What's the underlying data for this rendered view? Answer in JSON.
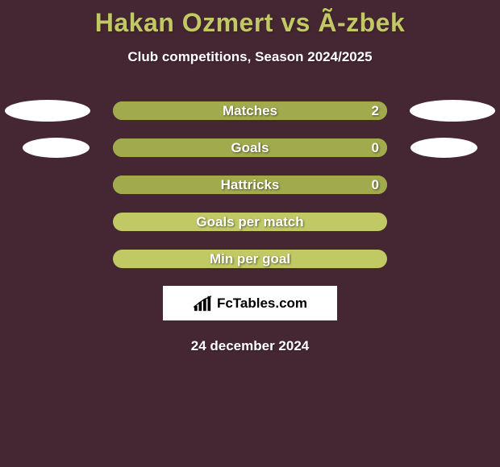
{
  "background_color": "#452633",
  "title": {
    "text": "Hakan Ozmert vs Ã-zbek",
    "color": "#c0c963"
  },
  "subtitle": {
    "text": "Club competitions, Season 2024/2025",
    "color": "#ffffff"
  },
  "bar_style": {
    "container_bg": "#c0c963",
    "left_fill_color": "#a2aa4e",
    "right_fill_color": "#a2aa4e",
    "label_color": "#ffffff",
    "border_radius": 12
  },
  "ellipse_color": "#ffffff",
  "rows": [
    {
      "label": "Matches",
      "left_value": "",
      "right_value": "2",
      "left_pct": 0,
      "right_pct": 100,
      "show_left_ellipse": true,
      "show_right_ellipse": true,
      "ellipse_variant": 1
    },
    {
      "label": "Goals",
      "left_value": "",
      "right_value": "0",
      "left_pct": 0,
      "right_pct": 100,
      "show_left_ellipse": true,
      "show_right_ellipse": true,
      "ellipse_variant": 2
    },
    {
      "label": "Hattricks",
      "left_value": "",
      "right_value": "0",
      "left_pct": 0,
      "right_pct": 100,
      "show_left_ellipse": false,
      "show_right_ellipse": false,
      "ellipse_variant": 0
    },
    {
      "label": "Goals per match",
      "left_value": "",
      "right_value": "",
      "left_pct": 0,
      "right_pct": 0,
      "show_left_ellipse": false,
      "show_right_ellipse": false,
      "ellipse_variant": 0
    },
    {
      "label": "Min per goal",
      "left_value": "",
      "right_value": "",
      "left_pct": 0,
      "right_pct": 0,
      "show_left_ellipse": false,
      "show_right_ellipse": false,
      "ellipse_variant": 0
    }
  ],
  "logo": {
    "text": "FcTables.com"
  },
  "date": {
    "text": "24 december 2024",
    "color": "#ffffff"
  }
}
